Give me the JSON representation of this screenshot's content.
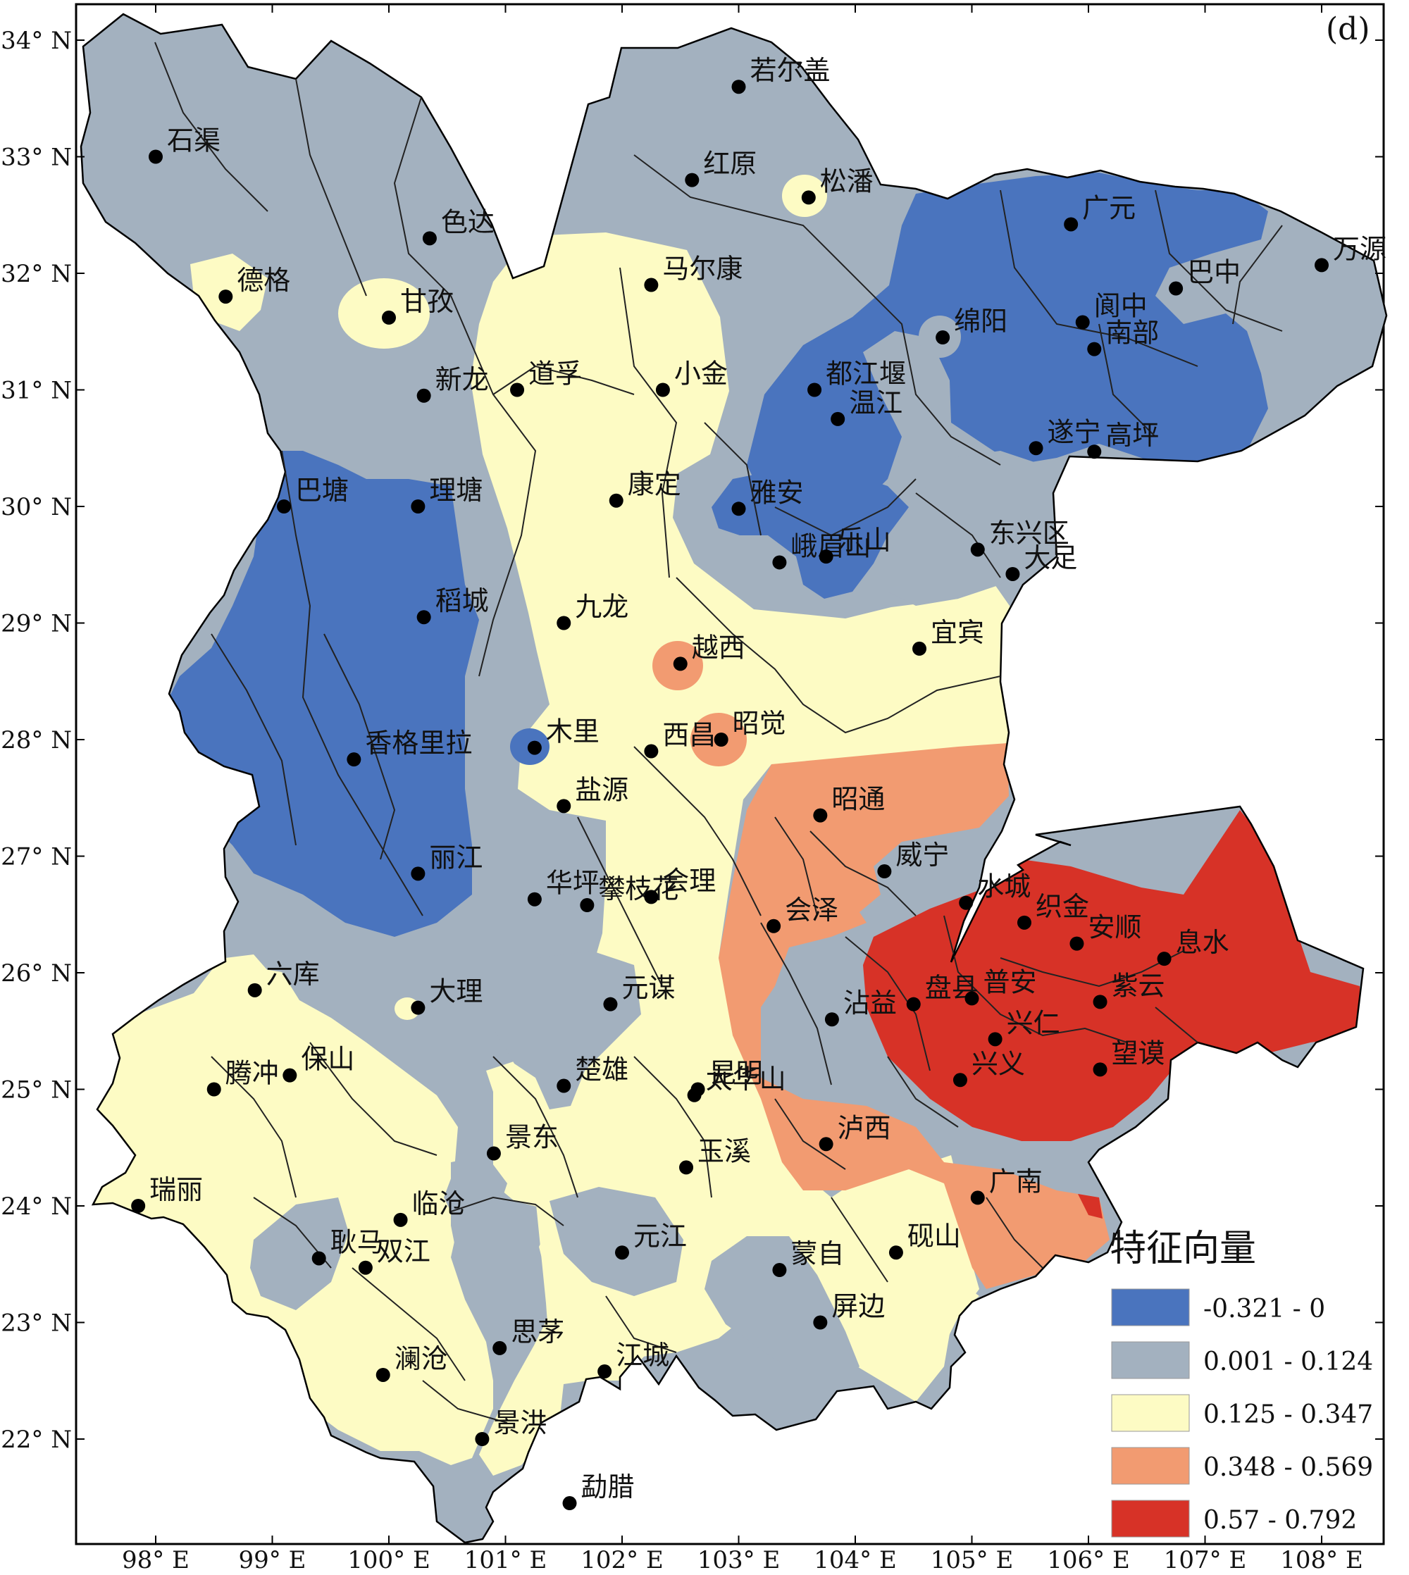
{
  "panel_label": "(d)",
  "lat_ticks": [
    {
      "value": 34,
      "label": "34° N"
    },
    {
      "value": 33,
      "label": "33° N"
    },
    {
      "value": 32,
      "label": "32° N"
    },
    {
      "value": 31,
      "label": "31° N"
    },
    {
      "value": 30,
      "label": "30° N"
    },
    {
      "value": 29,
      "label": "29° N"
    },
    {
      "value": 28,
      "label": "28° N"
    },
    {
      "value": 27,
      "label": "27° N"
    },
    {
      "value": 26,
      "label": "26° N"
    },
    {
      "value": 25,
      "label": "25° N"
    },
    {
      "value": 24,
      "label": "24° N"
    },
    {
      "value": 23,
      "label": "23° N"
    },
    {
      "value": 22,
      "label": "22° N"
    }
  ],
  "lon_ticks": [
    {
      "value": 98,
      "label": "98° E"
    },
    {
      "value": 99,
      "label": "99° E"
    },
    {
      "value": 100,
      "label": "100° E"
    },
    {
      "value": 101,
      "label": "101° E"
    },
    {
      "value": 102,
      "label": "102° E"
    },
    {
      "value": 103,
      "label": "103° E"
    },
    {
      "value": 104,
      "label": "104° E"
    },
    {
      "value": 105,
      "label": "105° E"
    },
    {
      "value": 106,
      "label": "106° E"
    },
    {
      "value": 107,
      "label": "107° E"
    },
    {
      "value": 108,
      "label": "108° E"
    }
  ],
  "legend": {
    "title": "特征向量",
    "classes": [
      {
        "label": "-0.321 - 0",
        "color": "#4a74be"
      },
      {
        "label": "0.001 - 0.124",
        "color": "#a3b1bf"
      },
      {
        "label": "0.125 - 0.347",
        "color": "#fdfbc4"
      },
      {
        "label": "0.348 - 0.569",
        "color": "#f29b71"
      },
      {
        "label": "0.57 - 0.792",
        "color": "#d73227"
      }
    ]
  },
  "stations": [
    {
      "name": "若尔盖",
      "lon": 103.0,
      "lat": 33.6
    },
    {
      "name": "石渠",
      "lon": 98.0,
      "lat": 33.0
    },
    {
      "name": "红原",
      "lon": 102.6,
      "lat": 32.8
    },
    {
      "name": "松潘",
      "lon": 103.6,
      "lat": 32.65
    },
    {
      "name": "色达",
      "lon": 100.35,
      "lat": 32.3
    },
    {
      "name": "广元",
      "lon": 105.85,
      "lat": 32.42
    },
    {
      "name": "万源",
      "lon": 108.0,
      "lat": 32.07
    },
    {
      "name": "德格",
      "lon": 98.6,
      "lat": 31.8
    },
    {
      "name": "马尔康",
      "lon": 102.25,
      "lat": 31.9
    },
    {
      "name": "甘孜",
      "lon": 100.0,
      "lat": 31.62
    },
    {
      "name": "巴中",
      "lon": 106.75,
      "lat": 31.87
    },
    {
      "name": "绵阳",
      "lon": 104.75,
      "lat": 31.45
    },
    {
      "name": "阆中",
      "lon": 105.95,
      "lat": 31.58
    },
    {
      "name": "南部",
      "lon": 106.05,
      "lat": 31.35
    },
    {
      "name": "新龙",
      "lon": 100.3,
      "lat": 30.95
    },
    {
      "name": "道孚",
      "lon": 101.1,
      "lat": 31.0
    },
    {
      "name": "小金",
      "lon": 102.35,
      "lat": 31.0
    },
    {
      "name": "都江堰",
      "lon": 103.65,
      "lat": 31.0
    },
    {
      "name": "温江",
      "lon": 103.85,
      "lat": 30.75
    },
    {
      "name": "遂宁",
      "lon": 105.55,
      "lat": 30.5
    },
    {
      "name": "高坪",
      "lon": 106.05,
      "lat": 30.47
    },
    {
      "name": "巴塘",
      "lon": 99.1,
      "lat": 30.0
    },
    {
      "name": "理塘",
      "lon": 100.25,
      "lat": 30.0
    },
    {
      "name": "康定",
      "lon": 101.95,
      "lat": 30.05
    },
    {
      "name": "雅安",
      "lon": 103.0,
      "lat": 29.98
    },
    {
      "name": "东兴区",
      "lon": 105.05,
      "lat": 29.63
    },
    {
      "name": "大足",
      "lon": 105.35,
      "lat": 29.42
    },
    {
      "name": "峨眉山",
      "lon": 103.35,
      "lat": 29.52
    },
    {
      "name": "乐山",
      "lon": 103.75,
      "lat": 29.57
    },
    {
      "name": "稻城",
      "lon": 100.3,
      "lat": 29.05
    },
    {
      "name": "九龙",
      "lon": 101.5,
      "lat": 29.0
    },
    {
      "name": "宜宾",
      "lon": 104.55,
      "lat": 28.78
    },
    {
      "name": "越西",
      "lon": 102.5,
      "lat": 28.65
    },
    {
      "name": "木里",
      "lon": 101.25,
      "lat": 27.93
    },
    {
      "name": "香格里拉",
      "lon": 99.7,
      "lat": 27.83
    },
    {
      "name": "西昌",
      "lon": 102.25,
      "lat": 27.9
    },
    {
      "name": "昭觉",
      "lon": 102.85,
      "lat": 28.0
    },
    {
      "name": "盐源",
      "lon": 101.5,
      "lat": 27.43
    },
    {
      "name": "昭通",
      "lon": 103.7,
      "lat": 27.35
    },
    {
      "name": "丽江",
      "lon": 100.25,
      "lat": 26.85
    },
    {
      "name": "威宁",
      "lon": 104.25,
      "lat": 26.87
    },
    {
      "name": "华坪",
      "lon": 101.25,
      "lat": 26.63
    },
    {
      "name": "攀枝花",
      "lon": 101.7,
      "lat": 26.58
    },
    {
      "name": "会理",
      "lon": 102.25,
      "lat": 26.65
    },
    {
      "name": "水城",
      "lon": 104.95,
      "lat": 26.6
    },
    {
      "name": "织金",
      "lon": 105.45,
      "lat": 26.43
    },
    {
      "name": "会泽",
      "lon": 103.3,
      "lat": 26.4
    },
    {
      "name": "安顺",
      "lon": 105.9,
      "lat": 26.25
    },
    {
      "name": "息水",
      "lon": 106.65,
      "lat": 26.12
    },
    {
      "name": "六库",
      "lon": 98.85,
      "lat": 25.85
    },
    {
      "name": "大理",
      "lon": 100.25,
      "lat": 25.7
    },
    {
      "name": "元谋",
      "lon": 101.9,
      "lat": 25.73
    },
    {
      "name": "盘县",
      "lon": 104.5,
      "lat": 25.73
    },
    {
      "name": "沾益",
      "lon": 103.8,
      "lat": 25.6
    },
    {
      "name": "普安",
      "lon": 105.0,
      "lat": 25.78
    },
    {
      "name": "兴仁",
      "lon": 105.2,
      "lat": 25.43
    },
    {
      "name": "紫云",
      "lon": 106.1,
      "lat": 25.75
    },
    {
      "name": "望谟",
      "lon": 106.1,
      "lat": 25.17
    },
    {
      "name": "兴义",
      "lon": 104.9,
      "lat": 25.08
    },
    {
      "name": "腾冲",
      "lon": 98.5,
      "lat": 25.0
    },
    {
      "name": "保山",
      "lon": 99.15,
      "lat": 25.12
    },
    {
      "name": "楚雄",
      "lon": 101.5,
      "lat": 25.03
    },
    {
      "name": "昆明",
      "lon": 102.65,
      "lat": 25.0
    },
    {
      "name": "太华山",
      "lon": 102.62,
      "lat": 24.95
    },
    {
      "name": "泸西",
      "lon": 103.75,
      "lat": 24.53
    },
    {
      "name": "景东",
      "lon": 100.9,
      "lat": 24.45
    },
    {
      "name": "玉溪",
      "lon": 102.55,
      "lat": 24.33
    },
    {
      "name": "广南",
      "lon": 105.05,
      "lat": 24.07
    },
    {
      "name": "瑞丽",
      "lon": 97.85,
      "lat": 24.0
    },
    {
      "name": "临沧",
      "lon": 100.1,
      "lat": 23.88
    },
    {
      "name": "元江",
      "lon": 102.0,
      "lat": 23.6
    },
    {
      "name": "砚山",
      "lon": 104.35,
      "lat": 23.6
    },
    {
      "name": "耿马",
      "lon": 99.4,
      "lat": 23.55
    },
    {
      "name": "双江",
      "lon": 99.8,
      "lat": 23.47
    },
    {
      "name": "蒙自",
      "lon": 103.35,
      "lat": 23.45
    },
    {
      "name": "屏边",
      "lon": 103.7,
      "lat": 23.0
    },
    {
      "name": "思茅",
      "lon": 100.95,
      "lat": 22.78
    },
    {
      "name": "澜沧",
      "lon": 99.95,
      "lat": 22.55
    },
    {
      "name": "江城",
      "lon": 101.85,
      "lat": 22.58
    },
    {
      "name": "景洪",
      "lon": 100.8,
      "lat": 22.0
    },
    {
      "name": "勐腊",
      "lon": 101.55,
      "lat": 21.45
    }
  ]
}
